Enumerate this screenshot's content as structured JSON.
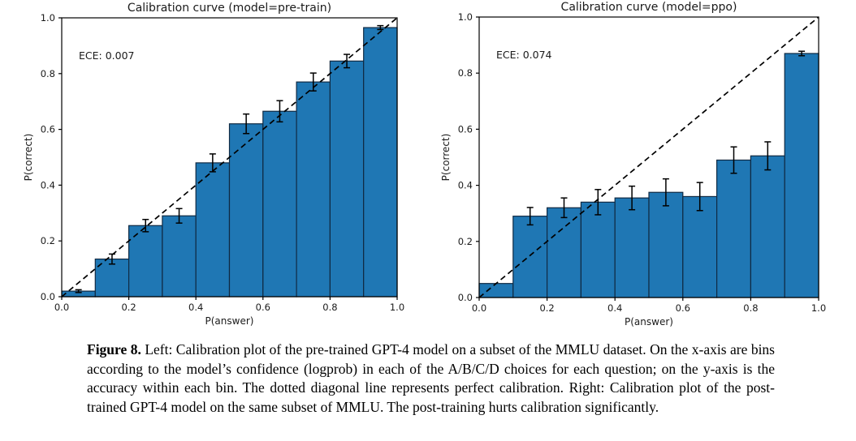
{
  "caption": {
    "label": "Figure 8.",
    "text": "Left: Calibration plot of the pre-trained GPT-4 model on a subset of the MMLU dataset. On the x-axis are bins according to the model’s confidence (logprob) in each of the A/B/C/D choices for each question; on the y-axis is the accuracy within each bin. The dotted diagonal line represents perfect calibration. Right: Calibration plot of the post-trained GPT-4 model on the same subset of MMLU. The post-training hurts calibration significantly."
  },
  "colors": {
    "bar_fill": "#1f77b4",
    "bar_edge": "#102a43",
    "line": "#000000",
    "background": "#ffffff"
  },
  "chart_data": [
    {
      "type": "bar",
      "title": "Calibration curve (model=pre-train)",
      "annotation": "ECE: 0.007",
      "xlabel": "P(answer)",
      "ylabel": "P(correct)",
      "xlim": [
        0.0,
        1.0
      ],
      "ylim": [
        0.0,
        1.0
      ],
      "x_ticks": [
        "0.0",
        "0.2",
        "0.4",
        "0.6",
        "0.8",
        "1.0"
      ],
      "y_ticks": [
        "0.0",
        "0.2",
        "0.4",
        "0.6",
        "0.8",
        "1.0"
      ],
      "bin_edges": [
        0.0,
        0.1,
        0.2,
        0.3,
        0.4,
        0.5,
        0.6,
        0.7,
        0.8,
        0.9,
        1.0
      ],
      "values": [
        0.02,
        0.135,
        0.255,
        0.29,
        0.48,
        0.62,
        0.665,
        0.77,
        0.845,
        0.965
      ],
      "errors": [
        0.005,
        0.018,
        0.022,
        0.026,
        0.032,
        0.035,
        0.038,
        0.032,
        0.024,
        0.007
      ],
      "diagonal_line": true,
      "grid": false,
      "legend": "none"
    },
    {
      "type": "bar",
      "title": "Calibration curve (model=ppo)",
      "annotation": "ECE: 0.074",
      "xlabel": "P(answer)",
      "ylabel": "P(correct)",
      "xlim": [
        0.0,
        1.0
      ],
      "ylim": [
        0.0,
        1.0
      ],
      "x_ticks": [
        "0.0",
        "0.2",
        "0.4",
        "0.6",
        "0.8",
        "1.0"
      ],
      "y_ticks": [
        "0.0",
        "0.2",
        "0.4",
        "0.6",
        "0.8",
        "1.0"
      ],
      "bin_edges": [
        0.0,
        0.1,
        0.2,
        0.3,
        0.4,
        0.5,
        0.6,
        0.7,
        0.8,
        0.9,
        1.0
      ],
      "values": [
        0.05,
        0.29,
        0.32,
        0.34,
        0.355,
        0.375,
        0.36,
        0.49,
        0.505,
        0.87
      ],
      "errors": [
        0,
        0.031,
        0.035,
        0.045,
        0.042,
        0.048,
        0.05,
        0.047,
        0.05,
        0.008
      ],
      "diagonal_line": true,
      "grid": false,
      "legend": "none"
    }
  ]
}
